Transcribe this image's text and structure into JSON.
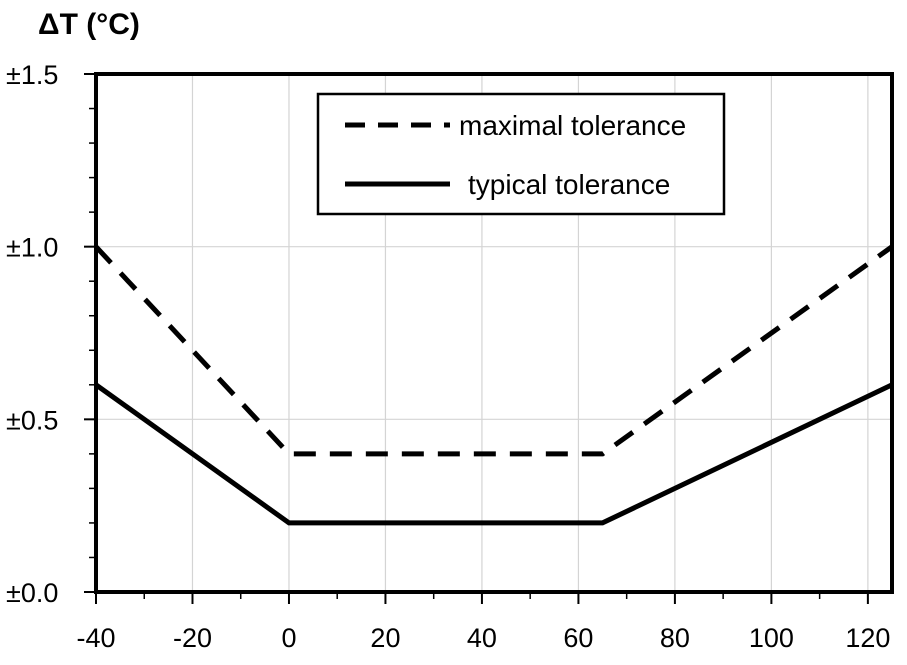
{
  "chart_data": {
    "type": "line",
    "ylabel": "ΔT (°C)",
    "xlabel": "",
    "xlim": [
      -40,
      125
    ],
    "ylim": [
      0,
      1.5
    ],
    "x_ticks": [
      -40,
      -20,
      0,
      20,
      40,
      60,
      80,
      100,
      120
    ],
    "x_tick_labels": [
      "-40",
      "-20",
      "0",
      "20",
      "40",
      "60",
      "80",
      "100",
      "120"
    ],
    "y_ticks": [
      0,
      0.5,
      1.0,
      1.5
    ],
    "y_tick_labels": [
      "±0.0",
      "±0.5",
      "±1.0",
      "±1.5"
    ],
    "grid": true,
    "legend_position": "top-center",
    "series": [
      {
        "name": "maximal tolerance",
        "style": "dashed",
        "color": "#000000",
        "points": [
          [
            -40,
            1.0
          ],
          [
            0,
            0.4
          ],
          [
            65,
            0.4
          ],
          [
            125,
            1.0
          ]
        ]
      },
      {
        "name": "typical tolerance",
        "style": "solid",
        "color": "#000000",
        "points": [
          [
            -40,
            0.6
          ],
          [
            0,
            0.2
          ],
          [
            65,
            0.2
          ],
          [
            125,
            0.6
          ]
        ]
      }
    ]
  }
}
